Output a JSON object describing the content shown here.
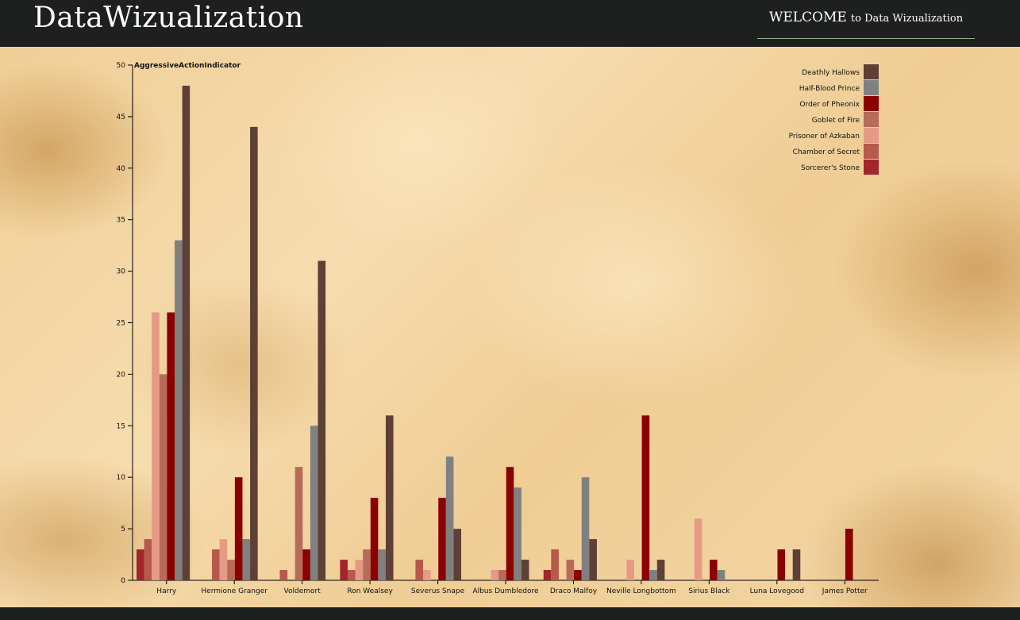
{
  "header": {
    "brand": "DataWizualization",
    "welcome_big": "WELCOME",
    "welcome_small": "to Data Wizualization"
  },
  "chart_data": {
    "type": "bar",
    "ylabel": "AggressiveActionIndicator",
    "ylim": [
      0,
      50
    ],
    "yticks": [
      0,
      5,
      10,
      15,
      20,
      25,
      30,
      35,
      40,
      45,
      50
    ],
    "grid": false,
    "legend_position": "top-right",
    "categories": [
      "Harry",
      "Hermione Granger",
      "Voldemort",
      "Ron Wealsey",
      "Severus Snape",
      "Albus Dumbledore",
      "Draco Malfoy",
      "Neville Longbottom",
      "Sirius Black",
      "Luna Lovegood",
      "James Potter"
    ],
    "series": [
      {
        "name": "Sorcerer's Stone",
        "color": "#a1262b",
        "values": [
          3,
          0,
          0,
          2,
          0,
          0,
          1,
          0,
          0,
          0,
          0
        ]
      },
      {
        "name": "Chamber of Secret",
        "color": "#b6584a",
        "values": [
          4,
          3,
          1,
          1,
          2,
          0,
          3,
          0,
          0,
          0,
          0
        ]
      },
      {
        "name": "Prisoner of Azkaban",
        "color": "#e59a85",
        "values": [
          26,
          4,
          0,
          2,
          1,
          1,
          0,
          2,
          6,
          0,
          0
        ]
      },
      {
        "name": "Goblet of Fire",
        "color": "#b86b58",
        "values": [
          20,
          2,
          11,
          3,
          0,
          1,
          2,
          0,
          0,
          0,
          0
        ]
      },
      {
        "name": "Order of Pheonix",
        "color": "#8b0000",
        "values": [
          26,
          10,
          3,
          8,
          8,
          11,
          1,
          16,
          2,
          3,
          5
        ]
      },
      {
        "name": "Half-Blood Prince",
        "color": "#808080",
        "values": [
          33,
          4,
          15,
          3,
          12,
          9,
          10,
          1,
          1,
          0,
          0
        ]
      },
      {
        "name": "Deathly Hallows",
        "color": "#5e4036",
        "values": [
          48,
          44,
          31,
          16,
          5,
          2,
          4,
          2,
          0,
          3,
          0
        ]
      }
    ],
    "legend_order": [
      "Deathly Hallows",
      "Half-Blood Prince",
      "Order of Pheonix",
      "Goblet of Fire",
      "Prisoner of Azkaban",
      "Chamber of Secret",
      "Sorcerer's Stone"
    ]
  }
}
